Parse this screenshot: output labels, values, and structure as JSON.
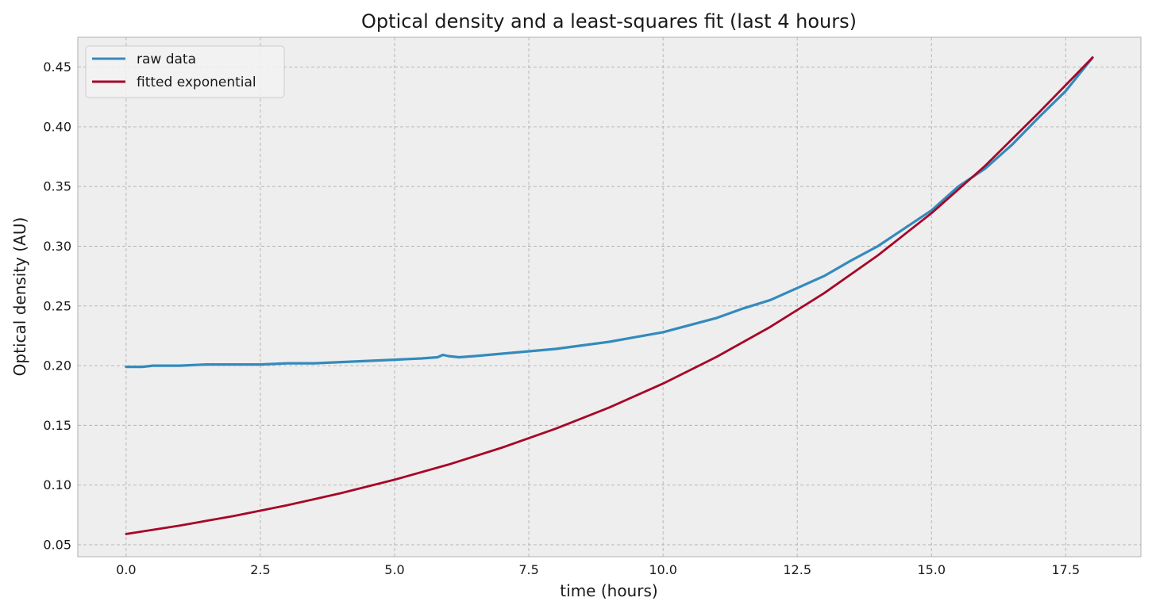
{
  "chart_data": {
    "type": "line",
    "title": "Optical density and a least-squares fit (last 4 hours)",
    "xlabel": "time (hours)",
    "ylabel": "Optical density (AU)",
    "xlim": [
      -0.9,
      18.9
    ],
    "ylim": [
      0.04,
      0.475
    ],
    "xticks": [
      0.0,
      2.5,
      5.0,
      7.5,
      10.0,
      12.5,
      15.0,
      17.5
    ],
    "xtick_labels": [
      "0.0",
      "2.5",
      "5.0",
      "7.5",
      "10.0",
      "12.5",
      "15.0",
      "17.5"
    ],
    "yticks": [
      0.05,
      0.1,
      0.15,
      0.2,
      0.25,
      0.3,
      0.35,
      0.4,
      0.45
    ],
    "ytick_labels": [
      "0.05",
      "0.10",
      "0.15",
      "0.20",
      "0.25",
      "0.30",
      "0.35",
      "0.40",
      "0.45"
    ],
    "grid": true,
    "legend_position": "top-left",
    "series": [
      {
        "name": "raw data",
        "color": "#348ABD",
        "x": [
          0.0,
          0.3,
          0.5,
          1.0,
          1.5,
          2.0,
          2.5,
          3.0,
          3.5,
          4.0,
          4.5,
          5.0,
          5.5,
          5.8,
          5.9,
          6.0,
          6.2,
          6.5,
          7.0,
          7.5,
          8.0,
          8.5,
          9.0,
          9.5,
          10.0,
          10.5,
          11.0,
          11.5,
          12.0,
          12.5,
          13.0,
          13.5,
          14.0,
          14.5,
          15.0,
          15.5,
          16.0,
          16.5,
          17.0,
          17.5,
          18.0
        ],
        "y": [
          0.199,
          0.199,
          0.2,
          0.2,
          0.201,
          0.201,
          0.201,
          0.202,
          0.202,
          0.203,
          0.204,
          0.205,
          0.206,
          0.207,
          0.209,
          0.208,
          0.207,
          0.208,
          0.21,
          0.212,
          0.214,
          0.217,
          0.22,
          0.224,
          0.228,
          0.234,
          0.24,
          0.248,
          0.255,
          0.265,
          0.275,
          0.288,
          0.3,
          0.315,
          0.33,
          0.35,
          0.365,
          0.385,
          0.408,
          0.43,
          0.458
        ]
      },
      {
        "name": "fitted exponential",
        "color": "#A60628",
        "x": [
          0.0,
          1.0,
          2.0,
          3.0,
          4.0,
          5.0,
          6.0,
          7.0,
          8.0,
          9.0,
          10.0,
          11.0,
          12.0,
          13.0,
          14.0,
          15.0,
          16.0,
          17.0,
          18.0
        ],
        "y": [
          0.059,
          0.0661,
          0.0741,
          0.0831,
          0.0932,
          0.1045,
          0.1171,
          0.1313,
          0.1472,
          0.165,
          0.185,
          0.2074,
          0.2325,
          0.2607,
          0.2923,
          0.3277,
          0.3674,
          0.4119,
          0.458
        ]
      }
    ]
  }
}
